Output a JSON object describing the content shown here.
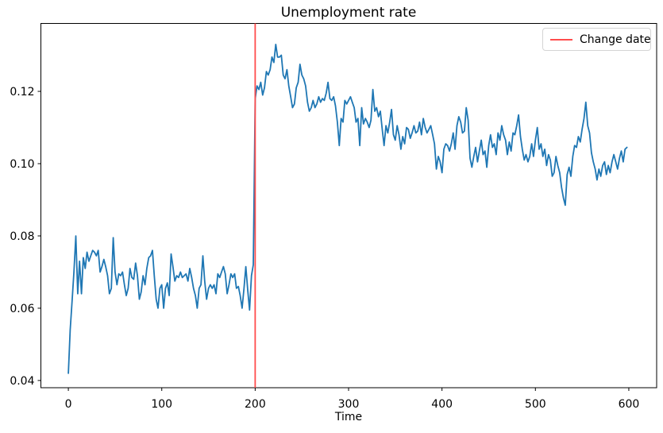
{
  "page": {
    "background": "#ffffff"
  },
  "chart_data": {
    "type": "line",
    "title": "Unemployment rate",
    "xlabel": "Time",
    "ylabel": "",
    "xlim": [
      -29.4,
      629.8
    ],
    "ylim": [
      0.038,
      0.1388
    ],
    "x_tick_values": [
      0,
      100,
      200,
      300,
      400,
      500,
      600
    ],
    "x_tick_labels": [
      "0",
      "100",
      "200",
      "300",
      "400",
      "500",
      "600"
    ],
    "y_tick_values": [
      0.04,
      0.06,
      0.08,
      0.1,
      0.12
    ],
    "y_tick_labels": [
      "0.04",
      "0.06",
      "0.08",
      "0.10",
      "0.12"
    ],
    "grid": false,
    "axis_color": "#000000",
    "legend": {
      "position": "upper right",
      "entries": [
        {
          "label": "Change date",
          "color": "#ff4d4d",
          "type": "line"
        }
      ]
    },
    "vline": {
      "x": 200,
      "color": "#ff4d4d"
    },
    "series": [
      {
        "name": "unemployment_rate",
        "color": "#1f77b4",
        "x_start": 0,
        "x_step": 2,
        "values": [
          0.042,
          0.054,
          0.062,
          0.07,
          0.08,
          0.064,
          0.073,
          0.064,
          0.074,
          0.071,
          0.0755,
          0.073,
          0.0745,
          0.076,
          0.0755,
          0.0745,
          0.076,
          0.07,
          0.0715,
          0.0735,
          0.0715,
          0.069,
          0.064,
          0.0655,
          0.0795,
          0.07,
          0.0665,
          0.0695,
          0.069,
          0.07,
          0.0665,
          0.0635,
          0.0655,
          0.071,
          0.0685,
          0.068,
          0.0725,
          0.069,
          0.0625,
          0.0645,
          0.069,
          0.0665,
          0.071,
          0.074,
          0.0745,
          0.076,
          0.069,
          0.0625,
          0.06,
          0.0655,
          0.0665,
          0.06,
          0.0655,
          0.067,
          0.0635,
          0.075,
          0.0715,
          0.0675,
          0.069,
          0.0685,
          0.07,
          0.0685,
          0.069,
          0.0695,
          0.0675,
          0.071,
          0.0685,
          0.0655,
          0.0635,
          0.06,
          0.0655,
          0.0665,
          0.0745,
          0.0675,
          0.0625,
          0.0655,
          0.0665,
          0.0655,
          0.0665,
          0.064,
          0.0695,
          0.0685,
          0.07,
          0.0715,
          0.0695,
          0.064,
          0.0665,
          0.0695,
          0.0685,
          0.0695,
          0.0655,
          0.066,
          0.0635,
          0.06,
          0.0655,
          0.0715,
          0.065,
          0.0595,
          0.069,
          0.072,
          0.118,
          0.1215,
          0.1205,
          0.1225,
          0.119,
          0.121,
          0.1255,
          0.1245,
          0.126,
          0.1295,
          0.128,
          0.133,
          0.1295,
          0.1295,
          0.13,
          0.1245,
          0.1235,
          0.126,
          0.1215,
          0.1185,
          0.1155,
          0.1165,
          0.121,
          0.1225,
          0.1275,
          0.1245,
          0.1235,
          0.1215,
          0.117,
          0.1145,
          0.1155,
          0.1175,
          0.1155,
          0.1165,
          0.1185,
          0.117,
          0.118,
          0.1175,
          0.1195,
          0.1225,
          0.118,
          0.1175,
          0.1185,
          0.116,
          0.1115,
          0.105,
          0.1125,
          0.1115,
          0.1175,
          0.1165,
          0.1175,
          0.1185,
          0.117,
          0.1155,
          0.1115,
          0.1125,
          0.105,
          0.1155,
          0.111,
          0.1125,
          0.1115,
          0.11,
          0.112,
          0.1205,
          0.1145,
          0.1155,
          0.113,
          0.1145,
          0.1095,
          0.105,
          0.1105,
          0.1085,
          0.1115,
          0.115,
          0.108,
          0.1065,
          0.1105,
          0.108,
          0.104,
          0.1075,
          0.1055,
          0.11,
          0.1095,
          0.107,
          0.1085,
          0.1105,
          0.1085,
          0.109,
          0.1115,
          0.108,
          0.1125,
          0.11,
          0.1085,
          0.1095,
          0.1105,
          0.108,
          0.1055,
          0.0985,
          0.102,
          0.1005,
          0.0975,
          0.104,
          0.1055,
          0.105,
          0.1035,
          0.1055,
          0.1085,
          0.104,
          0.1105,
          0.113,
          0.1115,
          0.1085,
          0.109,
          0.1155,
          0.112,
          0.1015,
          0.099,
          0.102,
          0.1045,
          0.1005,
          0.1035,
          0.1065,
          0.1025,
          0.1035,
          0.099,
          0.105,
          0.108,
          0.1045,
          0.1055,
          0.1025,
          0.1085,
          0.1065,
          0.1105,
          0.108,
          0.1065,
          0.1025,
          0.106,
          0.1035,
          0.1085,
          0.108,
          0.1105,
          0.1135,
          0.1075,
          0.104,
          0.101,
          0.1025,
          0.1005,
          0.102,
          0.1055,
          0.102,
          0.1065,
          0.11,
          0.104,
          0.1055,
          0.102,
          0.104,
          0.0995,
          0.1025,
          0.101,
          0.0965,
          0.0975,
          0.102,
          0.0995,
          0.0975,
          0.0935,
          0.0905,
          0.0885,
          0.097,
          0.099,
          0.0965,
          0.102,
          0.105,
          0.1045,
          0.1075,
          0.106,
          0.1095,
          0.1125,
          0.117,
          0.1105,
          0.1085,
          0.103,
          0.1005,
          0.0985,
          0.0955,
          0.0985,
          0.0965,
          0.0995,
          0.1005,
          0.097,
          0.0995,
          0.0975,
          0.1005,
          0.1025,
          0.1005,
          0.0985,
          0.1015,
          0.1035,
          0.1005,
          0.104,
          0.1045
        ]
      }
    ]
  }
}
